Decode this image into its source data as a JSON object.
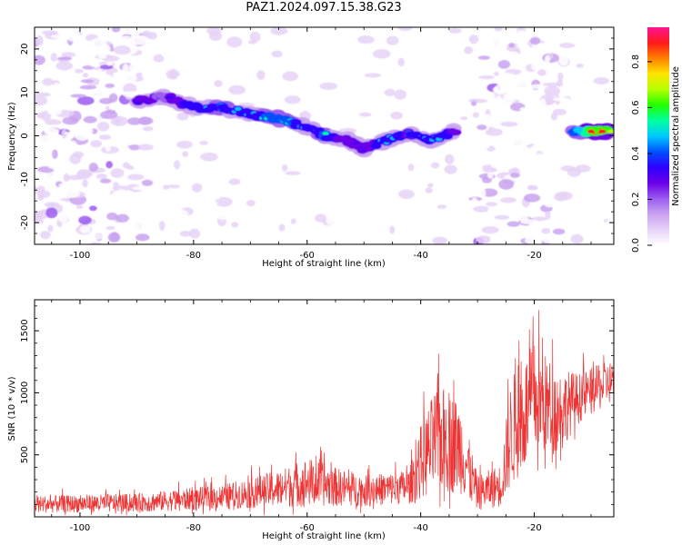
{
  "title": "PAZ1.2024.097.15.38.G23",
  "colors": {
    "snr_line": "#ee3333",
    "colormap": [
      "#ffffff",
      "#e6d2f7",
      "#c9a3f0",
      "#9b5cf0",
      "#6a00e8",
      "#2f00ff",
      "#0050ff",
      "#00c8ff",
      "#00ffa0",
      "#20ff00",
      "#b4ff00",
      "#ffe600",
      "#ff8000",
      "#ff1a1a",
      "#ff1493"
    ]
  },
  "chart_data": [
    {
      "type": "heatmap",
      "xlabel": "Height of straight line (km)",
      "ylabel": "Frequency (Hz)",
      "xlim": [
        -108,
        -6
      ],
      "ylim": [
        -25,
        25
      ],
      "xticks": [
        -100,
        -80,
        -60,
        -40,
        -20
      ],
      "yticks": [
        -20,
        -10,
        0,
        10,
        20
      ],
      "colorbar": {
        "label": "Normalized spectral amplitude",
        "range": [
          0,
          0.95
        ],
        "ticks": [
          "0.0",
          "0.2",
          "0.4",
          "0.6",
          "0.8"
        ]
      },
      "ridge": {
        "description_points": [
          {
            "x": -90,
            "y": 8,
            "amp": 0.35
          },
          {
            "x": -85,
            "y": 9,
            "amp": 0.3
          },
          {
            "x": -80,
            "y": 6.5,
            "amp": 0.45
          },
          {
            "x": -75,
            "y": 6.5,
            "amp": 0.5
          },
          {
            "x": -70,
            "y": 5,
            "amp": 0.45
          },
          {
            "x": -65,
            "y": 4,
            "amp": 0.55
          },
          {
            "x": -60,
            "y": 2,
            "amp": 0.45
          },
          {
            "x": -57,
            "y": 0,
            "amp": 0.5
          },
          {
            "x": -53,
            "y": -1,
            "amp": 0.35
          },
          {
            "x": -50,
            "y": -3,
            "amp": 0.35
          },
          {
            "x": -46,
            "y": -1,
            "amp": 0.45
          },
          {
            "x": -42,
            "y": 0.5,
            "amp": 0.4
          },
          {
            "x": -38,
            "y": -1,
            "amp": 0.45
          },
          {
            "x": -34,
            "y": 1,
            "amp": 0.4
          },
          {
            "x": -13,
            "y": 1,
            "amp": 0.5
          },
          {
            "x": -10,
            "y": 1,
            "amp": 0.8
          },
          {
            "x": -7,
            "y": 1,
            "amp": 0.85
          }
        ]
      }
    },
    {
      "type": "line",
      "xlabel": "Height of straight line (km)",
      "ylabel": "SNR (10 * v/v)",
      "xlim": [
        -108,
        -6
      ],
      "ylim": [
        0,
        1750
      ],
      "xticks": [
        -100,
        -80,
        -60,
        -40,
        -20
      ],
      "yticks": [
        500,
        1000,
        1500
      ],
      "series": [
        {
          "envelope": [
            {
              "x": -108,
              "base": 80,
              "amp": 140
            },
            {
              "x": -90,
              "base": 90,
              "amp": 150
            },
            {
              "x": -75,
              "base": 130,
              "amp": 200
            },
            {
              "x": -65,
              "base": 180,
              "amp": 300
            },
            {
              "x": -60,
              "base": 220,
              "amp": 400
            },
            {
              "x": -56,
              "base": 200,
              "amp": 330
            },
            {
              "x": -50,
              "base": 170,
              "amp": 250
            },
            {
              "x": -42,
              "base": 200,
              "amp": 280
            },
            {
              "x": -40,
              "base": 350,
              "amp": 600
            },
            {
              "x": -37,
              "base": 500,
              "amp": 900
            },
            {
              "x": -33,
              "base": 450,
              "amp": 750
            },
            {
              "x": -30,
              "base": 150,
              "amp": 280
            },
            {
              "x": -26,
              "base": 200,
              "amp": 350
            },
            {
              "x": -24,
              "base": 550,
              "amp": 900
            },
            {
              "x": -20,
              "base": 800,
              "amp": 950
            },
            {
              "x": -16,
              "base": 750,
              "amp": 700
            },
            {
              "x": -12,
              "base": 900,
              "amp": 400
            },
            {
              "x": -6,
              "base": 1050,
              "amp": 350
            }
          ]
        }
      ]
    }
  ]
}
